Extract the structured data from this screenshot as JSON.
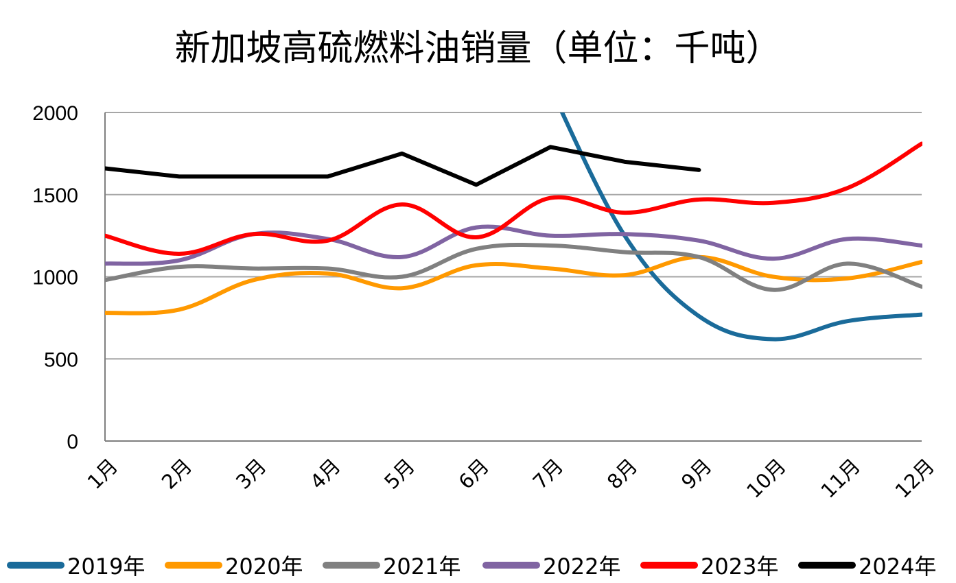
{
  "chart_data": {
    "type": "line",
    "title": "新加坡高硫燃料油销量（单位：千吨）",
    "categories": [
      "1月",
      "2月",
      "3月",
      "4月",
      "5月",
      "6月",
      "7月",
      "8月",
      "9月",
      "10月",
      "11月",
      "12月"
    ],
    "ylim": [
      0,
      2000
    ],
    "yticks": [
      0,
      500,
      1000,
      1500,
      2000
    ],
    "grid": true,
    "legend_position": "bottom",
    "series": [
      {
        "name": "2019年",
        "color": "#1a6b9a",
        "values": [
          null,
          null,
          null,
          null,
          null,
          null,
          2150,
          1250,
          760,
          620,
          730,
          770
        ]
      },
      {
        "name": "2020年",
        "color": "#ff9900",
        "values": [
          780,
          800,
          980,
          1020,
          930,
          1070,
          1050,
          1010,
          1120,
          1000,
          990,
          1090
        ]
      },
      {
        "name": "2021年",
        "color": "#808080",
        "values": [
          980,
          1060,
          1050,
          1050,
          1000,
          1170,
          1190,
          1150,
          1120,
          920,
          1080,
          940
        ]
      },
      {
        "name": "2022年",
        "color": "#8064a2",
        "values": [
          1080,
          1100,
          1260,
          1230,
          1120,
          1300,
          1250,
          1260,
          1220,
          1110,
          1230,
          1190
        ]
      },
      {
        "name": "2023年",
        "color": "#ff0000",
        "values": [
          1250,
          1140,
          1260,
          1220,
          1440,
          1240,
          1480,
          1390,
          1470,
          1450,
          1540,
          1810
        ]
      },
      {
        "name": "2024年",
        "color": "#000000",
        "values": [
          1660,
          1610,
          1610,
          1610,
          1750,
          1560,
          1790,
          1700,
          1650,
          null,
          null,
          null
        ]
      }
    ]
  }
}
